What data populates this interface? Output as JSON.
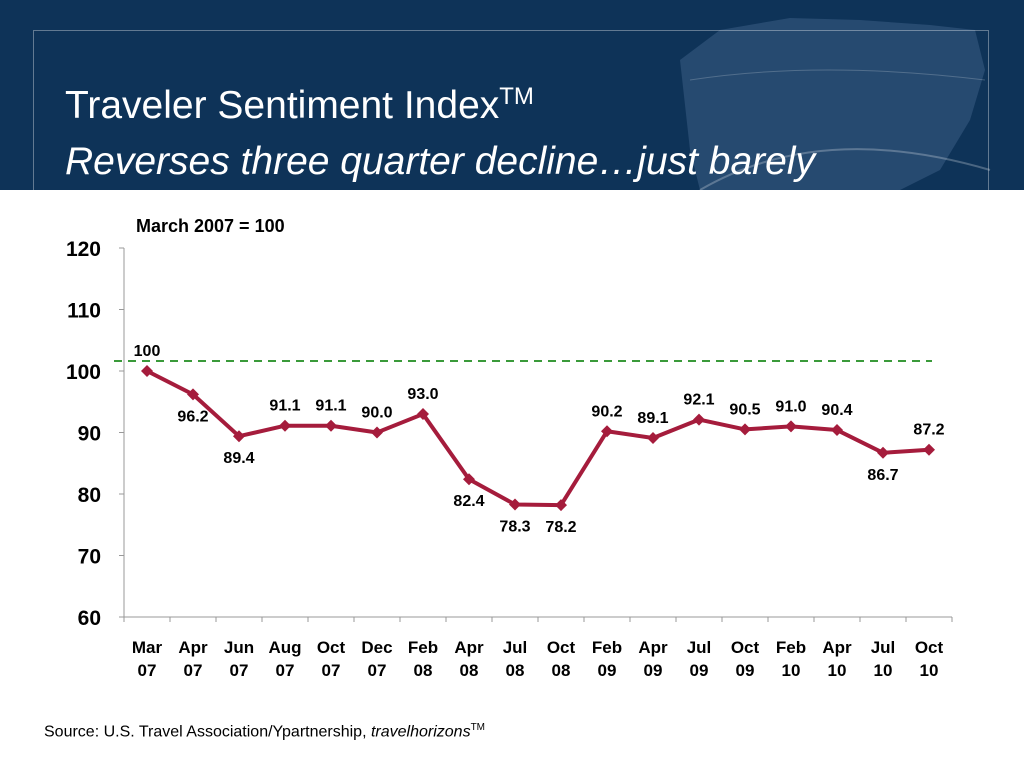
{
  "header": {
    "title": "Traveler Sentiment Index",
    "title_sup": "TM",
    "subtitle": "Reverses three quarter decline…just barely"
  },
  "chart_data": {
    "type": "line",
    "subtitle": "March 2007 = 100",
    "categories": [
      [
        "Mar",
        "07"
      ],
      [
        "Apr",
        "07"
      ],
      [
        "Jun",
        "07"
      ],
      [
        "Aug",
        "07"
      ],
      [
        "Oct",
        "07"
      ],
      [
        "Dec",
        "07"
      ],
      [
        "Feb",
        "08"
      ],
      [
        "Apr",
        "08"
      ],
      [
        "Jul",
        "08"
      ],
      [
        "Oct",
        "08"
      ],
      [
        "Feb",
        "09"
      ],
      [
        "Apr",
        "09"
      ],
      [
        "Jul",
        "09"
      ],
      [
        "Oct",
        "09"
      ],
      [
        "Feb",
        "10"
      ],
      [
        "Apr",
        "10"
      ],
      [
        "Jul",
        "10"
      ],
      [
        "Oct",
        "10"
      ]
    ],
    "values": [
      100,
      96.2,
      89.4,
      91.1,
      91.1,
      90.0,
      93.0,
      82.4,
      78.3,
      78.2,
      90.2,
      89.1,
      92.1,
      90.5,
      91.0,
      90.4,
      86.7,
      87.2
    ],
    "data_labels": [
      "100",
      "96.2",
      "89.4",
      "91.1",
      "91.1",
      "90.0",
      "93.0",
      "82.4",
      "78.3",
      "78.2",
      "90.2",
      "89.1",
      "92.1",
      "90.5",
      "91.0",
      "90.4",
      "86.7",
      "87.2"
    ],
    "label_positions": [
      "above",
      "below",
      "below",
      "above",
      "above",
      "above",
      "above",
      "below",
      "below",
      "below",
      "above",
      "above",
      "above",
      "above",
      "above",
      "above",
      "below",
      "above"
    ],
    "ylim": [
      60,
      120
    ],
    "yticks": [
      60,
      70,
      80,
      90,
      100,
      110,
      120
    ],
    "baseline": 100,
    "line_color": "#a51c3c",
    "baseline_color": "#3a9a3a",
    "grid": false
  },
  "source": {
    "prefix": "Source:  U.S. Travel Association/Ypartnership, ",
    "italic": "travelhorizons",
    "sup": "TM"
  }
}
